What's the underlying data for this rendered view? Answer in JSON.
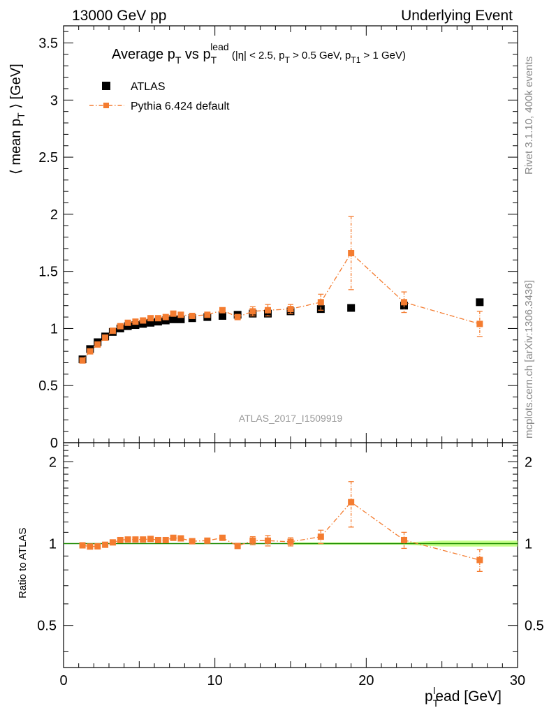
{
  "header": {
    "left": "13000 GeV pp",
    "right": "Underlying Event"
  },
  "side": {
    "top": "Rivet 3.1.10,  400k events",
    "bottom": "mcplots.cern.ch [arXiv:1306.3436]"
  },
  "watermark": "ATLAS_2017_I1509919",
  "title": {
    "main": "Average p",
    "sub1": "T",
    "vs": " vs p",
    "sub2": "T",
    "sup2": "lead",
    "cond": " (|η| < 2.5, p",
    "sub3": "T",
    "cond2": " > 0.5 GeV, p",
    "sub4": "T1",
    "cond3": " > 1 GeV)"
  },
  "colors": {
    "data": "#000000",
    "mc": "#f47c30",
    "ref_line": "#1a8a00",
    "band_inner": "#ffff66",
    "band_outer": "#b8ff6a"
  },
  "chart_data": [
    {
      "type": "scatter",
      "panel": "main",
      "ylabel": "⟨ mean p",
      "ylabel_sub": "T",
      "ylabel_end": " ⟩ [GeV]",
      "xlim": [
        0,
        30
      ],
      "ylim": [
        0,
        3.65
      ],
      "x_ticks": [
        "0",
        "10",
        "20",
        "30"
      ],
      "y_ticks": [
        "0",
        "0.5",
        "1",
        "1.5",
        "2",
        "2.5",
        "3",
        "3.5"
      ],
      "legend": {
        "placement": "top-left",
        "entries": [
          "ATLAS",
          "Pythia 6.424 default"
        ]
      },
      "series": [
        {
          "name": "ATLAS",
          "style": "square-marker",
          "points": [
            [
              1.25,
              0.73
            ],
            [
              1.75,
              0.82
            ],
            [
              2.25,
              0.88
            ],
            [
              2.75,
              0.93
            ],
            [
              3.25,
              0.97
            ],
            [
              3.75,
              1.0
            ],
            [
              4.25,
              1.02
            ],
            [
              4.75,
              1.03
            ],
            [
              5.25,
              1.04
            ],
            [
              5.75,
              1.05
            ],
            [
              6.25,
              1.06
            ],
            [
              6.75,
              1.07
            ],
            [
              7.25,
              1.08
            ],
            [
              7.75,
              1.08
            ],
            [
              8.5,
              1.09
            ],
            [
              9.5,
              1.1
            ],
            [
              10.5,
              1.11
            ],
            [
              11.5,
              1.12
            ],
            [
              12.5,
              1.13
            ],
            [
              13.5,
              1.13
            ],
            [
              15.0,
              1.15
            ],
            [
              17.0,
              1.17
            ],
            [
              19.0,
              1.18
            ],
            [
              22.5,
              1.2
            ],
            [
              27.5,
              1.23
            ]
          ]
        },
        {
          "name": "Pythia 6.424 default",
          "style": "dash-dot line with square markers",
          "points": [
            [
              1.25,
              0.72,
              0.0
            ],
            [
              1.75,
              0.8,
              0.0
            ],
            [
              2.25,
              0.86,
              0.0
            ],
            [
              2.75,
              0.92,
              0.0
            ],
            [
              3.25,
              0.98,
              0.0
            ],
            [
              3.75,
              1.02,
              0.0
            ],
            [
              4.25,
              1.05,
              0.0
            ],
            [
              4.75,
              1.06,
              0.0
            ],
            [
              5.25,
              1.07,
              0.0
            ],
            [
              5.75,
              1.09,
              0.0
            ],
            [
              6.25,
              1.09,
              0.0
            ],
            [
              6.75,
              1.1,
              0.0
            ],
            [
              7.25,
              1.13,
              0.0
            ],
            [
              7.75,
              1.12,
              0.0
            ],
            [
              8.5,
              1.11,
              0.0
            ],
            [
              9.5,
              1.12,
              0.0
            ],
            [
              10.5,
              1.16,
              0.02
            ],
            [
              11.5,
              1.1,
              0.02
            ],
            [
              12.5,
              1.15,
              0.04
            ],
            [
              13.5,
              1.16,
              0.05
            ],
            [
              15.0,
              1.17,
              0.04
            ],
            [
              17.0,
              1.23,
              0.07
            ],
            [
              19.0,
              1.66,
              0.32
            ],
            [
              22.5,
              1.23,
              0.09
            ],
            [
              27.5,
              1.04,
              0.11
            ]
          ]
        }
      ]
    },
    {
      "type": "scatter",
      "panel": "ratio",
      "ylabel": "Ratio to ATLAS",
      "xlabel": "p",
      "xlabel_sub": "T",
      "xlabel_sup": "l",
      "xlabel_end": "ead [GeV]",
      "xlim": [
        0,
        30
      ],
      "ylim": [
        0.35,
        2.35
      ],
      "log_y": true,
      "y_ticks": [
        "0.5",
        "1",
        "2"
      ],
      "reference": 1.0,
      "band": [
        [
          15.0,
          0.99,
          1.01
        ],
        [
          22.5,
          0.99,
          1.01
        ],
        [
          25.0,
          0.975,
          1.025
        ],
        [
          30.0,
          0.975,
          1.025
        ]
      ],
      "series": [
        {
          "name": "Pythia 6.424 default",
          "points": [
            [
              1.25,
              0.985,
              0.0
            ],
            [
              1.75,
              0.975,
              0.0
            ],
            [
              2.25,
              0.977,
              0.0
            ],
            [
              2.75,
              0.99,
              0.0
            ],
            [
              3.25,
              1.01,
              0.0
            ],
            [
              3.75,
              1.03,
              0.0
            ],
            [
              4.25,
              1.035,
              0.0
            ],
            [
              4.75,
              1.035,
              0.0
            ],
            [
              5.25,
              1.035,
              0.0
            ],
            [
              5.75,
              1.04,
              0.0
            ],
            [
              6.25,
              1.03,
              0.0
            ],
            [
              6.75,
              1.03,
              0.0
            ],
            [
              7.25,
              1.05,
              0.0
            ],
            [
              7.75,
              1.045,
              0.0
            ],
            [
              8.5,
              1.02,
              0.0
            ],
            [
              9.5,
              1.025,
              0.0
            ],
            [
              10.5,
              1.05,
              0.015
            ],
            [
              11.5,
              0.98,
              0.02
            ],
            [
              12.5,
              1.025,
              0.035
            ],
            [
              13.5,
              1.025,
              0.045
            ],
            [
              15.0,
              1.015,
              0.035
            ],
            [
              17.0,
              1.06,
              0.06
            ],
            [
              19.0,
              1.42,
              0.27
            ],
            [
              22.5,
              1.03,
              0.07
            ],
            [
              27.5,
              0.87,
              0.08
            ]
          ]
        }
      ]
    }
  ]
}
